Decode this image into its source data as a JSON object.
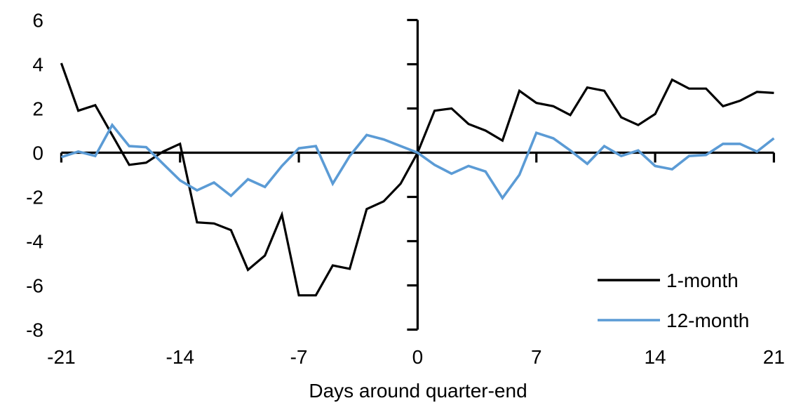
{
  "chart_data": {
    "type": "line",
    "title": "",
    "xlabel": "Days around quarter-end",
    "ylabel": "",
    "x": [
      -21,
      -20,
      -19,
      -18,
      -17,
      -16,
      -15,
      -14,
      -13,
      -12,
      -11,
      -10,
      -9,
      -8,
      -7,
      -6,
      -5,
      -4,
      -3,
      -2,
      -1,
      0,
      1,
      2,
      3,
      4,
      5,
      6,
      7,
      8,
      9,
      10,
      11,
      12,
      13,
      14,
      15,
      16,
      17,
      18,
      19,
      20,
      21
    ],
    "series": [
      {
        "name": "1-month",
        "color": "#000000",
        "values": [
          4.05,
          1.9,
          2.15,
          0.8,
          -0.55,
          -0.45,
          0.05,
          0.4,
          -3.15,
          -3.2,
          -3.5,
          -5.3,
          -4.65,
          -2.8,
          -6.45,
          -6.45,
          -5.1,
          -5.25,
          -2.55,
          -2.2,
          -1.4,
          0.0,
          1.9,
          2.0,
          1.3,
          1.0,
          0.55,
          2.8,
          2.25,
          2.1,
          1.7,
          2.95,
          2.8,
          1.6,
          1.25,
          1.75,
          3.3,
          2.9,
          2.9,
          2.1,
          2.35,
          2.75,
          2.7
        ]
      },
      {
        "name": "12-month",
        "color": "#5B9BD5",
        "values": [
          -0.2,
          0.05,
          -0.15,
          1.25,
          0.3,
          0.25,
          -0.5,
          -1.25,
          -1.7,
          -1.35,
          -1.95,
          -1.2,
          -1.55,
          -0.6,
          0.2,
          0.3,
          -1.4,
          -0.15,
          0.8,
          0.6,
          0.3,
          0.0,
          -0.55,
          -0.95,
          -0.6,
          -0.85,
          -2.05,
          -1.0,
          0.9,
          0.65,
          0.1,
          -0.5,
          0.3,
          -0.15,
          0.1,
          -0.6,
          -0.75,
          -0.15,
          -0.1,
          0.4,
          0.4,
          0.05,
          0.65
        ]
      }
    ],
    "xlim": [
      -21,
      21
    ],
    "ylim": [
      -8,
      6
    ],
    "x_ticks": [
      -21,
      -14,
      -7,
      0,
      7,
      14,
      21
    ],
    "y_ticks": [
      6,
      4,
      2,
      0,
      -2,
      -4,
      -6,
      -8
    ],
    "grid": false,
    "axis_color": "#000000",
    "legend_position": "lower-right",
    "legend": [
      {
        "label": "1-month",
        "color": "#000000"
      },
      {
        "label": "12-month",
        "color": "#5B9BD5"
      }
    ]
  }
}
